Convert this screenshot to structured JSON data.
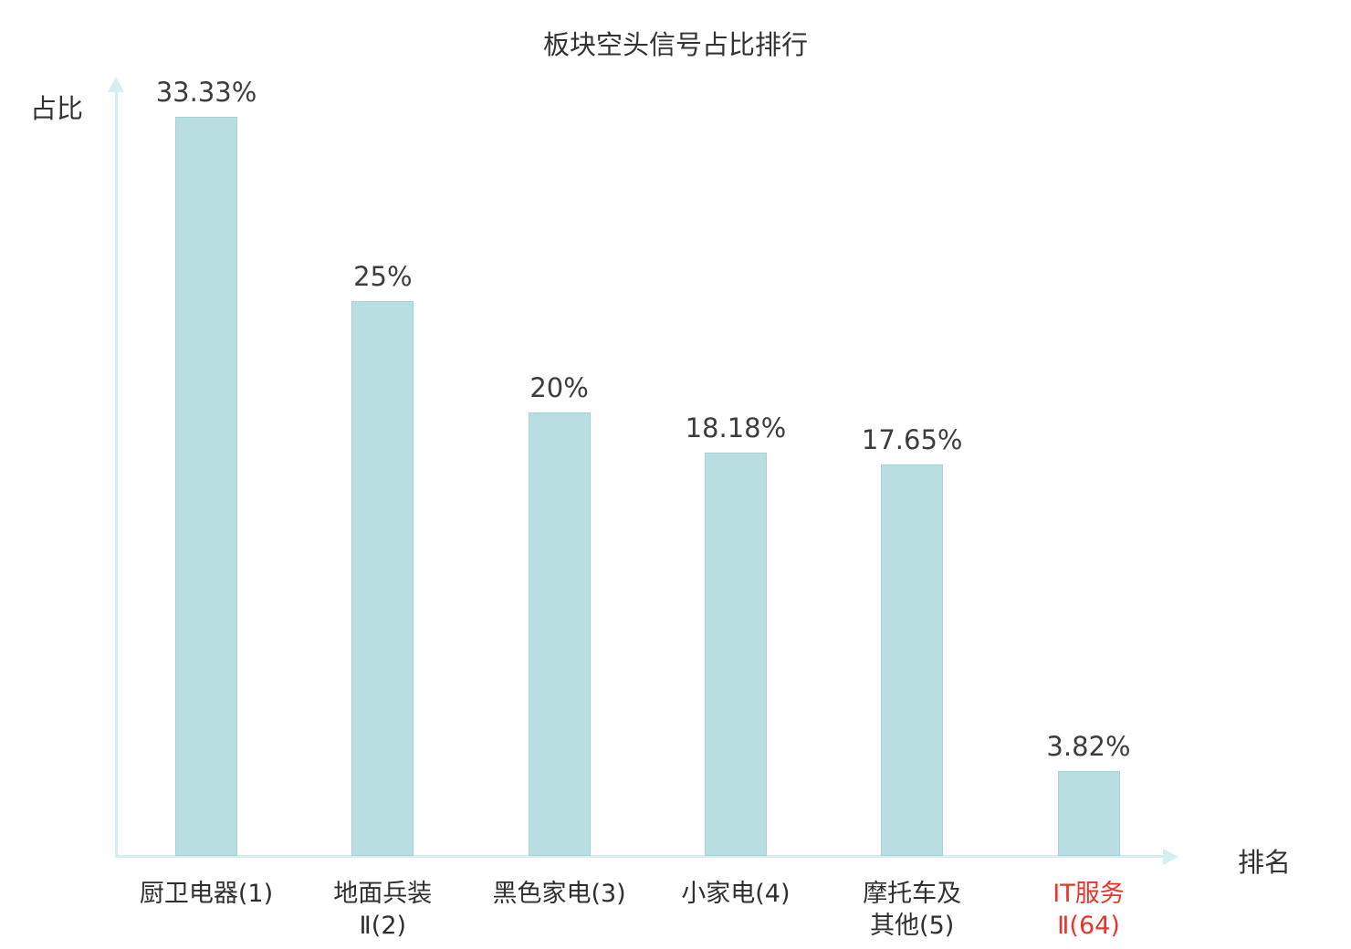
{
  "chart_data": {
    "type": "bar",
    "title": "板块空头信号占比排行",
    "xlabel": "排名",
    "ylabel": "占比",
    "categories": [
      "厨卫电器(1)",
      "地面兵装Ⅱ(2)",
      "黑色家电(3)",
      "小家电(4)",
      "摩托车及其他(5)",
      "IT服务Ⅱ(64)"
    ],
    "category_lines": [
      [
        "厨卫电器(1)"
      ],
      [
        "地面兵装",
        "Ⅱ(2)"
      ],
      [
        "黑色家电(3)"
      ],
      [
        "小家电(4)"
      ],
      [
        "摩托车及",
        "其他(5)"
      ],
      [
        "IT服务",
        "Ⅱ(64)"
      ]
    ],
    "values": [
      33.33,
      25,
      20,
      18.18,
      17.65,
      3.82
    ],
    "value_labels": [
      "33.33%",
      "25%",
      "20%",
      "18.18%",
      "17.65%",
      "3.82%"
    ],
    "highlight_index": 5,
    "ylim": [
      0,
      35
    ],
    "grid": false,
    "legend": "none",
    "bar_color": "#b8dee2",
    "bar_border_color": "#a3d2d7",
    "axis_color": "#d7eef0",
    "label_color": "#3d3d3d",
    "highlight_color": "#e5352e"
  }
}
